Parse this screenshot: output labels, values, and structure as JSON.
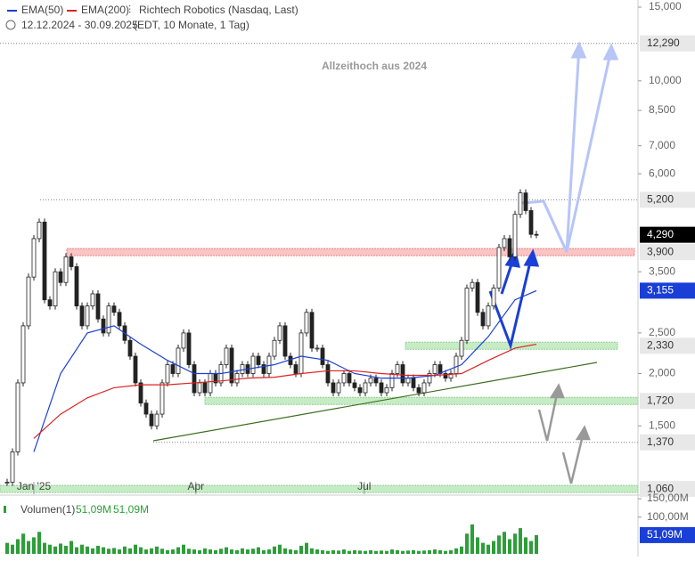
{
  "chart_data": {
    "type": "candlestick",
    "title": "Richtech Robotics (Nasdaq, Last)",
    "subtitle": "12.12.2024 - 30.09.2025",
    "subtitle_note": "(EDT, 10 Monate, 1 Tag)",
    "annotation": "Allzeithoch aus 2024",
    "log_scale": true,
    "xlim": [
      0,
      118
    ],
    "xticks": [
      {
        "value": 5,
        "label": "Jan '25"
      },
      {
        "value": 35.3,
        "label": "Apr"
      },
      {
        "value": 66.8,
        "label": "Jul"
      }
    ],
    "ylim": [
      1.03,
      15.6
    ],
    "yticks": [
      {
        "value": 15,
        "label": "15,000"
      },
      {
        "value": 10,
        "label": "10,000"
      },
      {
        "value": 8.5,
        "label": "8,500"
      },
      {
        "value": 7,
        "label": "7,000"
      },
      {
        "value": 6,
        "label": "6,000"
      },
      {
        "value": 3.5,
        "label": "3,500"
      },
      {
        "value": 2.5,
        "label": "2,500"
      },
      {
        "value": 2,
        "label": "2,000"
      },
      {
        "value": 1.5,
        "label": "1,500"
      }
    ],
    "close": [
      1.1,
      1.3,
      1.9,
      2.6,
      3.4,
      4.2,
      4.6,
      3.0,
      2.9,
      3.5,
      3.3,
      3.8,
      3.6,
      2.9,
      2.6,
      2.9,
      3.1,
      2.7,
      2.5,
      2.9,
      2.8,
      2.6,
      2.4,
      2.2,
      1.9,
      1.7,
      1.6,
      1.5,
      1.6,
      1.9,
      2.1,
      2.0,
      2.3,
      2.5,
      2.1,
      1.8,
      1.9,
      1.8,
      2.0,
      1.9,
      2.1,
      2.3,
      1.9,
      2.0,
      2.1,
      2.0,
      2.2,
      2.1,
      2.0,
      2.2,
      2.4,
      2.6,
      2.2,
      2.1,
      2.0,
      2.5,
      2.8,
      2.3,
      2.3,
      2.1,
      1.9,
      1.8,
      1.9,
      2.0,
      1.9,
      1.85,
      1.8,
      1.9,
      1.95,
      1.9,
      1.8,
      1.85,
      2.0,
      2.1,
      1.9,
      1.95,
      1.85,
      1.8,
      1.9,
      2.0,
      2.1,
      2.0,
      1.95,
      2.0,
      2.2,
      2.4,
      3.2,
      3.3,
      2.8,
      2.6,
      2.9,
      3.2,
      4.0,
      4.2,
      3.8,
      4.8,
      5.4,
      4.9,
      4.3,
      4.29
    ],
    "last_price": {
      "value": 4.29,
      "label": "4,290"
    },
    "series": [
      {
        "name": "EMA(50)",
        "color": "#1a3fd6",
        "x": [
          5,
          10,
          15,
          20,
          25,
          30,
          35,
          40,
          45,
          50,
          55,
          60,
          65,
          70,
          75,
          80,
          85,
          90,
          95,
          99
        ],
        "values": [
          1.3,
          2.0,
          2.5,
          2.6,
          2.35,
          2.15,
          2.0,
          2.0,
          2.05,
          2.1,
          2.2,
          2.15,
          2.0,
          1.95,
          1.95,
          1.98,
          2.1,
          2.45,
          3.0,
          3.155
        ],
        "last_label": {
          "value": 3.155,
          "label": "3,155"
        }
      },
      {
        "name": "EMA(200)",
        "color": "#e02020",
        "x": [
          5,
          10,
          15,
          20,
          25,
          30,
          35,
          40,
          45,
          50,
          55,
          60,
          65,
          70,
          75,
          80,
          85,
          90,
          95,
          99
        ],
        "values": [
          1.4,
          1.6,
          1.75,
          1.85,
          1.88,
          1.88,
          1.9,
          1.92,
          1.95,
          1.96,
          2.0,
          2.03,
          2.03,
          2.0,
          1.98,
          1.98,
          2.0,
          2.15,
          2.3,
          2.35
        ]
      }
    ],
    "levels": [
      {
        "value": 12.29,
        "label": "12,290"
      },
      {
        "value": 5.2,
        "label": "5,200"
      },
      {
        "value": 3.9,
        "label": "3,900"
      },
      {
        "value": 2.33,
        "label": "2,330"
      },
      {
        "value": 1.72,
        "label": "1,720"
      },
      {
        "value": 1.37,
        "label": "1,370"
      },
      {
        "value": 1.06,
        "label": "1,060"
      }
    ],
    "volume": {
      "name": "Volumen(1)",
      "legend_values": [
        "51,09M",
        "51,09M"
      ],
      "color": "#2e9e3a",
      "ylim": [
        0,
        155
      ],
      "yticks": [
        {
          "value": 150,
          "label": "150,00M"
        },
        {
          "value": 100,
          "label": "100,00M"
        }
      ],
      "values": [
        30,
        25,
        40,
        55,
        35,
        45,
        60,
        30,
        25,
        20,
        28,
        22,
        35,
        18,
        25,
        20,
        15,
        22,
        18,
        14,
        16,
        12,
        20,
        15,
        25,
        18,
        12,
        15,
        20,
        14,
        10,
        12,
        18,
        25,
        14,
        12,
        10,
        15,
        12,
        10,
        14,
        18,
        12,
        10,
        15,
        12,
        14,
        18,
        10,
        12,
        20,
        25,
        15,
        12,
        10,
        22,
        30,
        15,
        12,
        10,
        8,
        10,
        9,
        12,
        8,
        10,
        9,
        8,
        10,
        8,
        9,
        8,
        12,
        10,
        8,
        9,
        10,
        8,
        9,
        10,
        12,
        10,
        8,
        10,
        15,
        20,
        55,
        80,
        45,
        30,
        25,
        35,
        50,
        60,
        40,
        55,
        70,
        45,
        35,
        51.09
      ],
      "last_label": {
        "value": 51.09,
        "label": "51,09M"
      }
    }
  }
}
